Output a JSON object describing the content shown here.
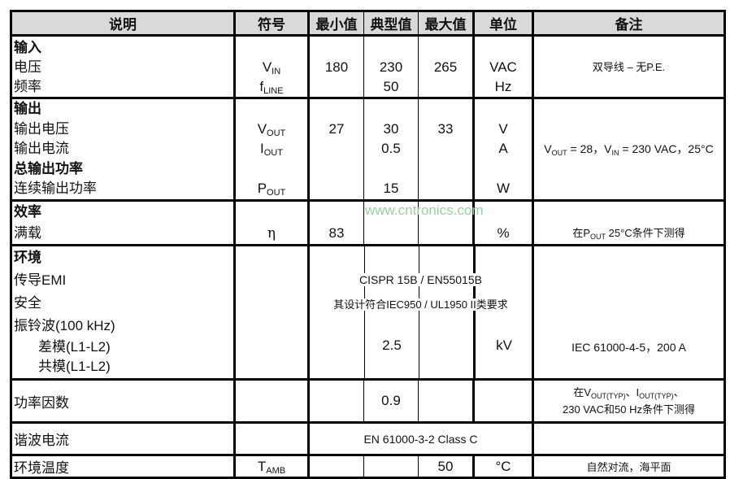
{
  "header": {
    "desc": "说明",
    "symbol": "符号",
    "min": "最小值",
    "typ": "典型值",
    "max": "最大值",
    "unit": "单位",
    "notes": "备注"
  },
  "input": {
    "title": "输入",
    "voltage": "电压",
    "frequency": "频率",
    "vin_base": "V",
    "vin_sub": "IN",
    "fline_base": "f",
    "fline_sub": "LINE",
    "v_min": "180",
    "v_typ": "230",
    "v_max": "265",
    "v_unit": "VAC",
    "f_typ": "50",
    "f_unit": "Hz",
    "note": "双导线 – 无P.E."
  },
  "output": {
    "title": "输出",
    "voltage": "输出电压",
    "current": "输出电流",
    "total_title": "总输出功率",
    "cont_power": "连续输出功率",
    "vout_base": "V",
    "vout_sub": "OUT",
    "iout_base": "I",
    "iout_sub": "OUT",
    "pout_base": "P",
    "pout_sub": "OUT",
    "v_min": "27",
    "v_typ": "30",
    "v_max": "33",
    "v_unit": "V",
    "i_typ": "0.5",
    "i_unit": "A",
    "p_typ": "15",
    "p_unit": "W",
    "note_a": "V",
    "note_a_sub": "OUT",
    "note_b": " = 28，V",
    "note_b_sub": "IN",
    "note_c": " = 230 VAC，25°C"
  },
  "efficiency": {
    "title": "效率",
    "full_load": "满载",
    "symbol": "η",
    "min": "83",
    "unit": "%",
    "note_a": "在P",
    "note_a_sub": "OUT",
    "note_b": " 25°C条件下测得"
  },
  "environment": {
    "title": "环境",
    "emi": "传导EMI",
    "safety": "安全",
    "ring": "振铃波(100 kHz)",
    "diff": "差模(L1-L2)",
    "common": "共模(L1-L2)",
    "emi_value": "CISPR 15B / EN55015B",
    "safety_value": "其设计符合IEC950 / UL1950 II类要求",
    "ring_typ": "2.5",
    "ring_unit": "kV",
    "ring_note": "IEC 61000-4-5，200 A"
  },
  "power_factor": {
    "label": "功率因数",
    "typ": "0.9",
    "note_l1_a": "在V",
    "note_l1_a_sub": "OUT(TYP)",
    "note_l1_b": "、I",
    "note_l1_b_sub": "OUT(TYP)",
    "note_l1_c": "、",
    "note_l2": "230 VAC和50 Hz条件下测得"
  },
  "harmonic": {
    "label": "谐波电流",
    "value": "EN 61000-3-2 Class C"
  },
  "temperature": {
    "label": "环境温度",
    "sym_base": "T",
    "sym_sub": "AMB",
    "max": "50",
    "unit": "°C",
    "note": "自然对流，海平面"
  },
  "watermark": "www.cntronics.com"
}
